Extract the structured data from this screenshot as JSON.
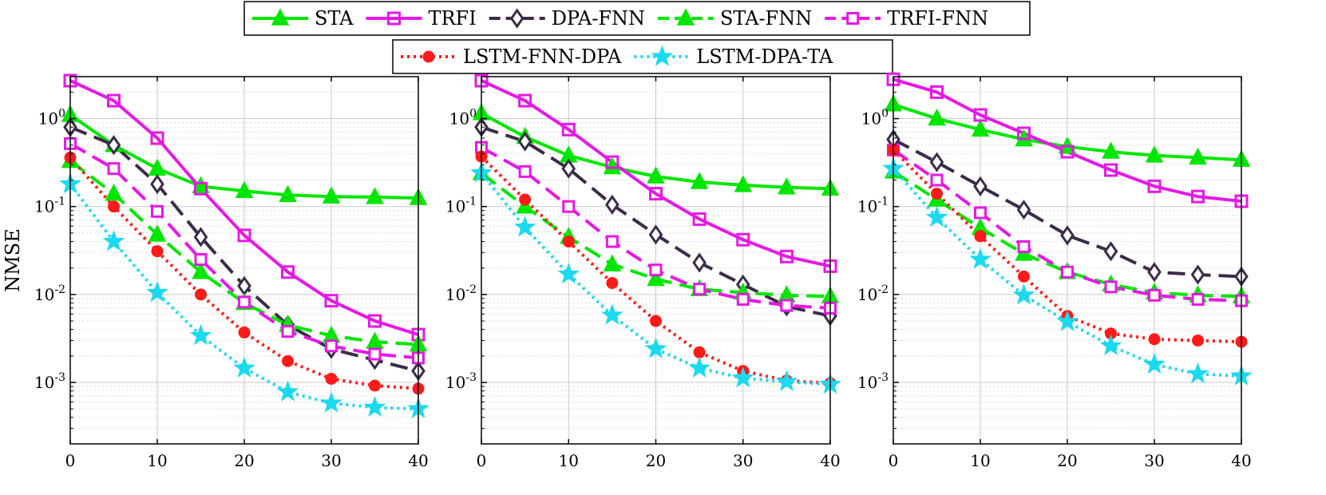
{
  "chart_data": [
    {
      "type": "line",
      "yscale": "log",
      "ylabel": "NMSE",
      "xlabel": "",
      "x": [
        0,
        5,
        10,
        15,
        20,
        25,
        30,
        35,
        40
      ],
      "xlim": [
        0,
        40
      ],
      "ylim": [
        0.0002,
        3
      ],
      "grid": true,
      "series": [
        {
          "name": "STA",
          "values": [
            1.1,
            0.5,
            0.27,
            0.17,
            0.15,
            0.135,
            0.13,
            0.128,
            0.125
          ]
        },
        {
          "name": "TRFI",
          "values": [
            2.7,
            1.6,
            0.6,
            0.16,
            0.047,
            0.018,
            0.0085,
            0.005,
            0.0035
          ]
        },
        {
          "name": "DPA-FNN",
          "values": [
            0.8,
            0.5,
            0.18,
            0.045,
            0.0125,
            0.0045,
            0.0024,
            0.0018,
            0.00135
          ]
        },
        {
          "name": "STA-FNN",
          "values": [
            0.33,
            0.14,
            0.048,
            0.018,
            0.008,
            0.0045,
            0.0034,
            0.0029,
            0.0027
          ]
        },
        {
          "name": "TRFI-FNN",
          "values": [
            0.52,
            0.27,
            0.088,
            0.025,
            0.0082,
            0.0038,
            0.0026,
            0.0021,
            0.0019
          ]
        },
        {
          "name": "LSTM-FNN-DPA",
          "values": [
            0.36,
            0.1,
            0.031,
            0.01,
            0.0037,
            0.00175,
            0.0011,
            0.00092,
            0.00085
          ]
        },
        {
          "name": "LSTM-DPA-TA",
          "values": [
            0.18,
            0.04,
            0.0105,
            0.0034,
            0.00145,
            0.00078,
            0.00058,
            0.00052,
            0.0005
          ]
        }
      ]
    },
    {
      "type": "line",
      "yscale": "log",
      "ylabel": "",
      "xlabel": "",
      "x": [
        0,
        5,
        10,
        15,
        20,
        25,
        30,
        35,
        40
      ],
      "xlim": [
        0,
        40
      ],
      "ylim": [
        0.0002,
        3
      ],
      "grid": true,
      "series": [
        {
          "name": "STA",
          "values": [
            1.15,
            0.62,
            0.38,
            0.28,
            0.22,
            0.19,
            0.175,
            0.165,
            0.16
          ]
        },
        {
          "name": "TRFI",
          "values": [
            2.7,
            1.6,
            0.75,
            0.32,
            0.14,
            0.072,
            0.042,
            0.027,
            0.021
          ]
        },
        {
          "name": "DPA-FNN",
          "values": [
            0.8,
            0.55,
            0.27,
            0.105,
            0.048,
            0.023,
            0.013,
            0.0073,
            0.0057
          ]
        },
        {
          "name": "STA-FNN",
          "values": [
            0.24,
            0.1,
            0.045,
            0.022,
            0.015,
            0.0115,
            0.0105,
            0.0098,
            0.0095
          ]
        },
        {
          "name": "TRFI-FNN",
          "values": [
            0.47,
            0.25,
            0.1,
            0.04,
            0.019,
            0.0115,
            0.0088,
            0.0075,
            0.007
          ]
        },
        {
          "name": "LSTM-FNN-DPA",
          "values": [
            0.37,
            0.12,
            0.04,
            0.0135,
            0.005,
            0.0022,
            0.00135,
            0.00105,
            0.00098
          ]
        },
        {
          "name": "LSTM-DPA-TA",
          "values": [
            0.24,
            0.058,
            0.017,
            0.0058,
            0.0024,
            0.00145,
            0.00112,
            0.00102,
            0.00095
          ]
        }
      ]
    },
    {
      "type": "line",
      "yscale": "log",
      "ylabel": "",
      "xlabel": "",
      "x": [
        0,
        5,
        10,
        15,
        20,
        25,
        30,
        35,
        40
      ],
      "xlim": [
        0,
        40
      ],
      "ylim": [
        0.0002,
        3
      ],
      "grid": true,
      "series": [
        {
          "name": "STA",
          "values": [
            1.45,
            1.0,
            0.75,
            0.58,
            0.48,
            0.42,
            0.38,
            0.36,
            0.34
          ]
        },
        {
          "name": "TRFI",
          "values": [
            2.8,
            2.0,
            1.1,
            0.68,
            0.42,
            0.26,
            0.17,
            0.13,
            0.115
          ]
        },
        {
          "name": "DPA-FNN",
          "values": [
            0.58,
            0.32,
            0.17,
            0.092,
            0.047,
            0.031,
            0.018,
            0.0168,
            0.016
          ]
        },
        {
          "name": "STA-FNN",
          "values": [
            0.25,
            0.12,
            0.057,
            0.029,
            0.018,
            0.013,
            0.0105,
            0.0098,
            0.0095
          ]
        },
        {
          "name": "TRFI-FNN",
          "values": [
            0.44,
            0.2,
            0.085,
            0.035,
            0.018,
            0.0122,
            0.0098,
            0.0088,
            0.0085
          ]
        },
        {
          "name": "LSTM-FNN-DPA",
          "values": [
            0.44,
            0.14,
            0.046,
            0.016,
            0.0057,
            0.0036,
            0.0031,
            0.003,
            0.0029
          ]
        },
        {
          "name": "LSTM-DPA-TA",
          "values": [
            0.27,
            0.075,
            0.025,
            0.0098,
            0.0049,
            0.0026,
            0.0016,
            0.00125,
            0.00118
          ]
        }
      ]
    }
  ],
  "legend": {
    "row1": [
      "STA",
      "TRFI",
      "DPA-FNN",
      "STA-FNN",
      "TRFI-FNN"
    ],
    "row2": [
      "LSTM-FNN-DPA",
      "LSTM-DPA-TA"
    ]
  },
  "style": {
    "colors": {
      "STA": "#00e600",
      "TRFI": "#e619e6",
      "DPA-FNN": "#3d2b4a",
      "STA-FNN": "#00e600",
      "TRFI-FNN": "#e619e6",
      "LSTM-FNN-DPA": "#ff1a1a",
      "LSTM-DPA-TA": "#1ad9f0"
    },
    "markers": {
      "STA": "triangle",
      "TRFI": "square",
      "DPA-FNN": "diamond",
      "STA-FNN": "triangle",
      "TRFI-FNN": "square-open",
      "LSTM-FNN-DPA": "circle",
      "LSTM-DPA-TA": "star"
    },
    "linestyles": {
      "STA": "solid",
      "TRFI": "solid",
      "DPA-FNN": "dashed",
      "STA-FNN": "dashed",
      "TRFI-FNN": "dashed",
      "LSTM-FNN-DPA": "dotted",
      "LSTM-DPA-TA": "dotted"
    }
  }
}
